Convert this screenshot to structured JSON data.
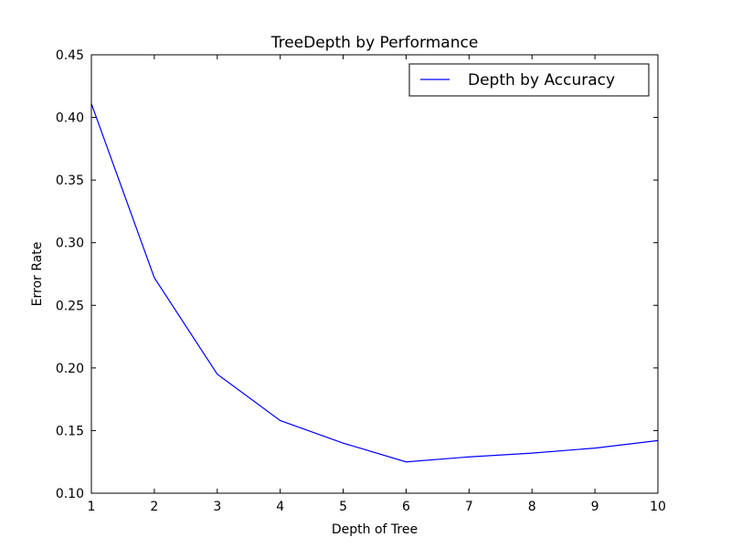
{
  "chart_data": {
    "type": "line",
    "title": "TreeDepth by Performance",
    "xlabel": "Depth of Tree",
    "ylabel": "Error Rate",
    "xlim": [
      1,
      10
    ],
    "ylim": [
      0.1,
      0.45
    ],
    "xticks": [
      "1",
      "2",
      "3",
      "4",
      "5",
      "6",
      "7",
      "8",
      "9",
      "10"
    ],
    "yticks": [
      "0.10",
      "0.15",
      "0.20",
      "0.25",
      "0.30",
      "0.35",
      "0.40",
      "0.45"
    ],
    "grid": false,
    "legend_position": "top-right",
    "series": [
      {
        "name": "Depth by Accuracy",
        "color": "#0000ff",
        "x": [
          1,
          2,
          3,
          4,
          5,
          6,
          7,
          8,
          9,
          10
        ],
        "y": [
          0.411,
          0.272,
          0.195,
          0.158,
          0.14,
          0.125,
          0.129,
          0.132,
          0.136,
          0.142
        ]
      }
    ]
  }
}
